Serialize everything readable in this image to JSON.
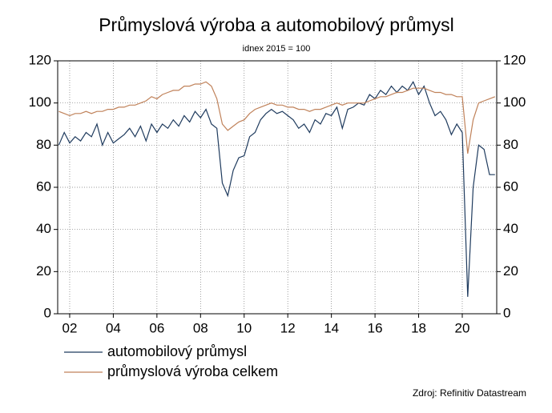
{
  "chart_data": {
    "type": "line",
    "title": "Průmyslová výroba a automobilový průmysl",
    "subtitle": "idnex 2015 = 100",
    "source": "Zdroj: Refinitiv Datastream",
    "x": [
      2001.5,
      2001.75,
      2002,
      2002.25,
      2002.5,
      2002.75,
      2003,
      2003.25,
      2003.5,
      2003.75,
      2004,
      2004.25,
      2004.5,
      2004.75,
      2005,
      2005.25,
      2005.5,
      2005.75,
      2006,
      2006.25,
      2006.5,
      2006.75,
      2007,
      2007.25,
      2007.5,
      2007.75,
      2008,
      2008.25,
      2008.5,
      2008.75,
      2009,
      2009.25,
      2009.5,
      2009.75,
      2010,
      2010.25,
      2010.5,
      2010.75,
      2011,
      2011.25,
      2011.5,
      2011.75,
      2012,
      2012.25,
      2012.5,
      2012.75,
      2013,
      2013.25,
      2013.5,
      2013.75,
      2014,
      2014.25,
      2014.5,
      2014.75,
      2015,
      2015.25,
      2015.5,
      2015.75,
      2016,
      2016.25,
      2016.5,
      2016.75,
      2017,
      2017.25,
      2017.5,
      2017.75,
      2018,
      2018.25,
      2018.5,
      2018.75,
      2019,
      2019.25,
      2019.5,
      2019.75,
      2020,
      2020.25,
      2020.5,
      2020.75,
      2021,
      2021.25,
      2021.5
    ],
    "series": [
      {
        "name": "automobilový průmysl",
        "color": "#1f3b5e",
        "values": [
          80,
          86,
          81,
          84,
          82,
          86,
          84,
          90,
          80,
          86,
          81,
          83,
          85,
          88,
          84,
          89,
          82,
          90,
          86,
          90,
          88,
          92,
          89,
          94,
          91,
          96,
          93,
          97,
          90,
          88,
          62,
          56,
          68,
          74,
          75,
          84,
          86,
          92,
          95,
          97,
          95,
          96,
          94,
          92,
          88,
          90,
          86,
          92,
          90,
          95,
          94,
          98,
          88,
          97,
          98,
          100,
          99,
          104,
          102,
          106,
          104,
          108,
          105,
          108,
          106,
          110,
          104,
          108,
          100,
          94,
          96,
          92,
          85,
          90,
          86,
          8,
          60,
          80,
          78,
          66,
          66
        ]
      },
      {
        "name": "průmyslová výroba celkem",
        "color": "#c0825a",
        "values": [
          96,
          95,
          94,
          95,
          95,
          96,
          95,
          96,
          96,
          97,
          97,
          98,
          98,
          99,
          99,
          100,
          101,
          103,
          102,
          104,
          105,
          106,
          106,
          108,
          108,
          109,
          109,
          110,
          108,
          102,
          90,
          87,
          89,
          91,
          92,
          95,
          97,
          98,
          99,
          100,
          99,
          99,
          98,
          98,
          97,
          97,
          96,
          97,
          97,
          98,
          99,
          100,
          99,
          100,
          100,
          100,
          100,
          101,
          102,
          103,
          103,
          104,
          105,
          105,
          106,
          107,
          107,
          107,
          106,
          105,
          105,
          104,
          104,
          103,
          103,
          76,
          92,
          100,
          101,
          102,
          103
        ]
      }
    ],
    "xlim": [
      2001.45,
      2021.58
    ],
    "xticks": [
      {
        "value": 2002,
        "label": "02"
      },
      {
        "value": 2004,
        "label": "04"
      },
      {
        "value": 2006,
        "label": "06"
      },
      {
        "value": 2008,
        "label": "08"
      },
      {
        "value": 2010,
        "label": "10"
      },
      {
        "value": 2012,
        "label": "12"
      },
      {
        "value": 2014,
        "label": "14"
      },
      {
        "value": 2016,
        "label": "16"
      },
      {
        "value": 2018,
        "label": "18"
      },
      {
        "value": 2020,
        "label": "20"
      }
    ],
    "ylim": [
      0,
      120
    ],
    "yticks": [
      0,
      20,
      40,
      60,
      80,
      100,
      120
    ],
    "grid": true
  }
}
